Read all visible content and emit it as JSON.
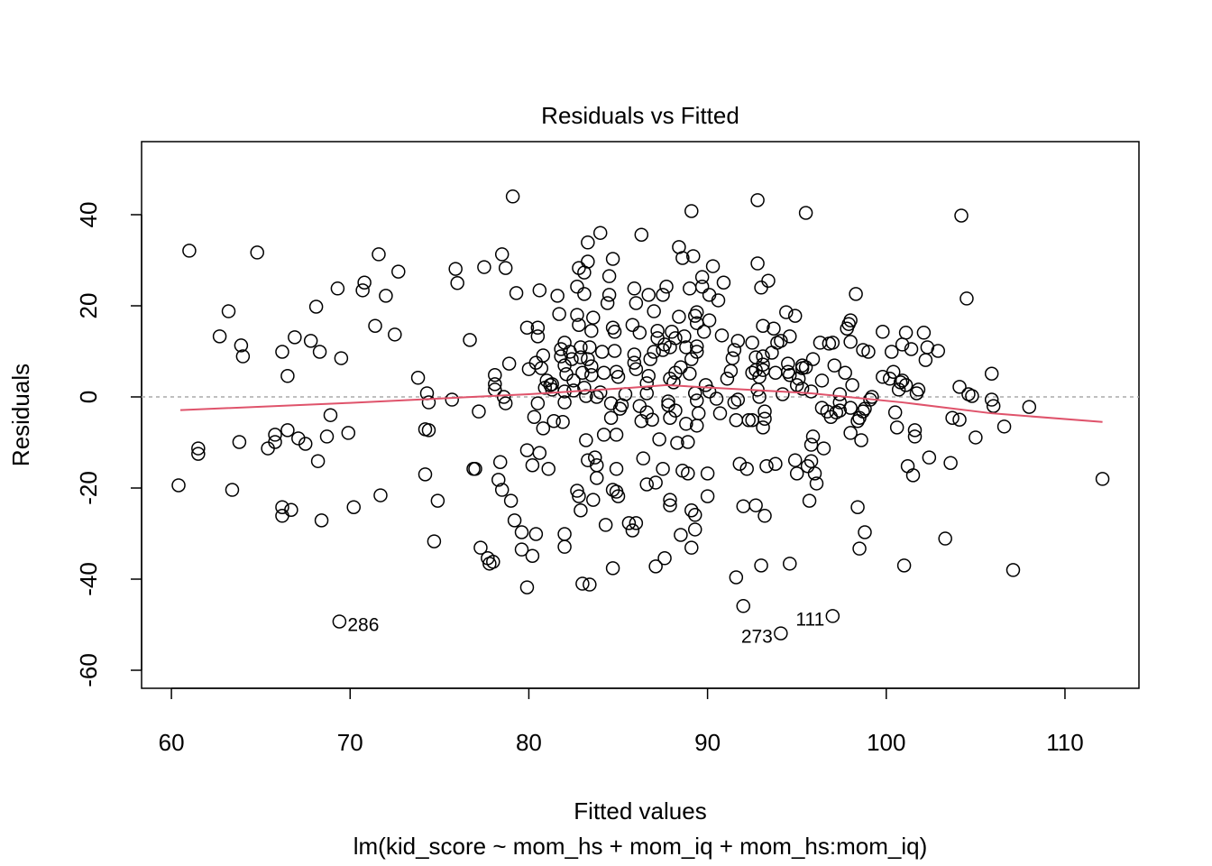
{
  "chart_data": {
    "type": "scatter",
    "title": "Residuals vs Fitted",
    "x_label": "Fitted values",
    "subtitle": "lm(kid_score ~ mom_hs + mom_iq + mom_hs:mom_iq)",
    "y_label": "Residuals",
    "xlim": [
      58.33,
      114.14
    ],
    "ylim": [
      -63.96,
      56.04
    ],
    "xticks": [
      60,
      70,
      80,
      90,
      100,
      110
    ],
    "yticks": [
      -60,
      -40,
      -20,
      0,
      20,
      40
    ],
    "point_color": "#000000",
    "x": [
      60.4,
      61.0,
      61.5,
      61.5,
      62.7,
      63.2,
      63.4,
      63.8,
      63.9,
      64.0,
      64.8,
      65.4,
      65.8,
      65.8,
      66.2,
      66.2,
      66.2,
      66.5,
      66.5,
      66.7,
      66.9,
      67.1,
      67.5,
      67.8,
      68.1,
      68.2,
      68.3,
      68.4,
      68.7,
      68.9,
      69.3,
      69.4,
      69.5,
      69.9,
      70.2,
      70.7,
      70.8,
      71.4,
      71.6,
      71.7,
      72.0,
      72.5,
      72.7,
      73.8,
      74.2,
      74.4,
      74.2,
      74.3,
      74.4,
      74.7,
      74.9,
      75.7,
      75.9,
      76.0,
      76.7,
      76.9,
      77.0,
      77.2,
      77.3,
      77.5,
      77.7,
      77.8,
      78.0,
      78.1,
      78.1,
      78.1,
      78.3,
      78.5,
      78.4,
      78.5,
      78.6,
      78.7,
      78.7,
      78.9,
      79.0,
      79.1,
      79.2,
      79.3,
      79.6,
      79.6,
      79.9,
      79.9,
      79.9,
      80.0,
      80.2,
      80.2,
      80.3,
      80.4,
      80.4,
      80.5,
      80.5,
      80.5,
      80.6,
      80.6,
      80.7,
      80.8,
      80.8,
      80.9,
      81.0,
      81.2,
      81.1,
      81.3,
      81.3,
      81.4,
      81.6,
      81.7,
      81.8,
      81.8,
      81.9,
      82.0,
      82.0,
      82.0,
      82.0,
      82.0,
      82.0,
      82.1,
      82.3,
      82.4,
      82.5,
      82.5,
      82.7,
      82.7,
      82.8,
      82.7,
      82.8,
      82.8,
      82.9,
      82.9,
      82.9,
      83.0,
      83.0,
      83.1,
      83.1,
      83.1,
      83.2,
      83.2,
      83.3,
      83.3,
      83.3,
      83.3,
      83.4,
      83.4,
      83.5,
      83.5,
      83.5,
      83.6,
      83.6,
      83.7,
      83.8,
      83.8,
      83.8,
      84.0,
      84.0,
      84.1,
      84.2,
      84.2,
      84.3,
      84.4,
      84.5,
      84.5,
      84.6,
      84.6,
      84.7,
      84.7,
      84.8,
      84.7,
      84.7,
      84.9,
      84.8,
      84.9,
      85.0,
      84.9,
      84.9,
      85.0,
      85.1,
      85.2,
      85.4,
      85.6,
      85.8,
      86.0,
      85.8,
      85.9,
      85.9,
      85.9,
      86.0,
      86.0,
      86.2,
      86.3,
      86.6,
      86.3,
      86.4,
      86.2,
      86.6,
      86.6,
      86.6,
      86.7,
      86.7,
      86.8,
      86.9,
      87.0,
      87.0,
      87.2,
      87.2,
      87.1,
      87.1,
      87.3,
      87.5,
      87.6,
      87.9,
      87.5,
      87.7,
      87.5,
      87.6,
      87.8,
      87.8,
      87.9,
      87.9,
      87.9,
      88.2,
      87.9,
      88.1,
      88.2,
      88.0,
      88.2,
      88.3,
      88.4,
      88.4,
      88.6,
      88.5,
      88.5,
      88.6,
      88.7,
      88.8,
      88.8,
      88.9,
      88.9,
      89.0,
      89.0,
      89.1,
      89.1,
      89.1,
      89.1,
      89.3,
      89.2,
      89.3,
      89.3,
      89.4,
      89.4,
      89.3,
      89.4,
      89.4,
      89.4,
      89.4,
      89.5,
      89.7,
      89.7,
      89.8,
      89.9,
      90.0,
      90.0,
      90.1,
      90.1,
      90.1,
      90.3,
      90.5,
      90.7,
      90.6,
      90.8,
      90.9,
      91.1,
      91.3,
      91.4,
      91.5,
      91.7,
      91.5,
      91.7,
      91.6,
      91.6,
      91.8,
      92.0,
      92.0,
      92.2,
      92.3,
      92.5,
      92.5,
      92.5,
      92.7,
      92.9,
      92.7,
      92.7,
      92.8,
      92.8,
      92.8,
      92.9,
      93.0,
      93.1,
      93.0,
      93.1,
      93.1,
      93.1,
      93.1,
      93.2,
      93.2,
      93.2,
      93.3,
      93.4,
      93.6,
      93.7,
      93.8,
      93.8,
      93.9,
      94.1,
      94.2,
      94.1,
      94.4,
      94.5,
      94.5,
      94.6,
      94.6,
      94.6,
      94.9,
      94.9,
      95.0,
      95.3,
      95.3,
      95.0,
      95.1,
      95.3,
      95.5,
      95.5,
      95.6,
      95.7,
      95.8,
      95.8,
      95.9,
      95.9,
      95.8,
      96.0,
      96.1,
      96.3,
      96.4,
      96.4,
      96.5,
      96.7,
      96.9,
      96.8,
      97.0,
      97.0,
      97.1,
      97.2,
      97.4,
      97.4,
      97.4,
      97.7,
      97.8,
      97.9,
      98.0,
      98.0,
      98.0,
      98.0,
      98.1,
      98.3,
      98.4,
      98.4,
      98.5,
      98.5,
      98.6,
      98.7,
      98.8,
      98.7,
      99.0,
      98.8,
      99.1,
      99.2,
      99.8,
      99.8,
      100.2,
      100.3,
      100.4,
      100.5,
      100.6,
      100.7,
      100.8,
      100.9,
      100.9,
      101.1,
      101.0,
      101.1,
      101.2,
      101.4,
      101.5,
      101.6,
      101.6,
      101.7,
      101.8,
      102.1,
      102.2,
      102.3,
      102.4,
      102.9,
      103.3,
      103.6,
      103.7,
      104.1,
      104.1,
      104.2,
      104.5,
      104.6,
      104.8,
      105.0,
      105.9,
      105.9,
      106.0,
      106.6,
      107.1,
      108.0,
      112.1
    ],
    "values": [
      -19.4,
      32.1,
      -11.3,
      -12.5,
      13.3,
      18.8,
      -20.4,
      -9.9,
      11.3,
      8.9,
      31.7,
      -11.3,
      -8.3,
      -9.9,
      9.9,
      -24.2,
      -26.1,
      4.6,
      -7.3,
      -24.8,
      13.1,
      -9.1,
      -10.3,
      12.3,
      19.8,
      -14.1,
      9.9,
      -27.1,
      -8.7,
      -4.0,
      23.8,
      -49.3,
      8.5,
      -7.9,
      -24.2,
      23.4,
      25.1,
      15.6,
      31.3,
      -21.6,
      22.2,
      13.7,
      27.5,
      4.2,
      -7.1,
      -7.3,
      -17.0,
      0.8,
      -1.2,
      -31.7,
      -22.8,
      -0.6,
      28.1,
      25.0,
      12.5,
      -15.8,
      -15.8,
      -3.2,
      -33.1,
      28.5,
      -35.4,
      -36.6,
      -36.2,
      4.8,
      2.8,
      1.6,
      -18.2,
      -20.4,
      -14.3,
      31.3,
      0,
      -1.4,
      28.3,
      7.3,
      -22.8,
      44.0,
      -27.1,
      22.8,
      -29.7,
      -33.5,
      -41.8,
      15.2,
      -11.7,
      6.1,
      -34.9,
      -15.0,
      -4.4,
      -30.1,
      7.5,
      15.2,
      13.3,
      -1.4,
      23.4,
      -12.3,
      6.3,
      -6.9,
      9.1,
      2.0,
      3.6,
      2.6,
      -15.8,
      1.6,
      2.8,
      -5.3,
      22.2,
      18.2,
      10.5,
      8.9,
      -5.5,
      6.9,
      11.9,
      -30.1,
      -32.9,
      1.2,
      -1.2,
      5.0,
      9.9,
      8.3,
      1.4,
      3.6,
      18.0,
      24.2,
      28.3,
      -20.6,
      -21.8,
      15.8,
      10.9,
      8.7,
      -24.9,
      -41.0,
      5.3,
      27.3,
      22.6,
      2.0,
      0.2,
      -9.5,
      -13.9,
      33.9,
      29.7,
      8.3,
      10.9,
      -41.2,
      4.8,
      6.7,
      14.5,
      17.4,
      -22.6,
      -13.3,
      -15.0,
      -17.8,
      0,
      1.0,
      36.0,
      9.9,
      5.3,
      -8.3,
      -28.1,
      20.6,
      26.5,
      22.4,
      -1.4,
      -4.6,
      30.3,
      15.2,
      14.3,
      -37.6,
      -20.4,
      -20.8,
      10.1,
      5.5,
      4.4,
      -8.3,
      -15.8,
      -21.8,
      -2.6,
      -1.8,
      0.6,
      -27.7,
      -29.3,
      -27.7,
      15.8,
      9.3,
      7.5,
      23.8,
      20.6,
      6.1,
      -2.0,
      -5.3,
      -3.4,
      35.6,
      -13.5,
      14.1,
      -19.2,
      0.8,
      3.0,
      4.6,
      22.4,
      8.3,
      -5.0,
      9.9,
      18.8,
      12.9,
      14.5,
      -37.2,
      -18.8,
      -9.3,
      10.3,
      11.5,
      10.9,
      22.4,
      24.2,
      -15.8,
      -35.4,
      -1.0,
      -1.8,
      -22.6,
      -23.8,
      -4.6,
      -3.0,
      4.0,
      3.2,
      5.3,
      14.3,
      12.9,
      -10.1,
      17.6,
      32.9,
      30.5,
      -30.3,
      6.5,
      -16.2,
      13.3,
      10.9,
      -5.9,
      -9.9,
      -16.8,
      23.8,
      5.1,
      8.3,
      -33.1,
      40.8,
      -24.9,
      -25.9,
      30.9,
      -29.1,
      0.8,
      -0.8,
      -6.3,
      17.8,
      16.2,
      18.6,
      9.9,
      11.1,
      -3.6,
      26.3,
      24.2,
      14.3,
      2.6,
      -21.8,
      -16.8,
      1.2,
      16.8,
      22.4,
      28.7,
      -0.4,
      -3.6,
      21.2,
      13.5,
      25.1,
      4.0,
      5.7,
      8.5,
      10.3,
      12.3,
      -1.2,
      -0.6,
      -5.1,
      -39.6,
      -14.7,
      -45.9,
      -24.0,
      -15.8,
      -5.1,
      -5.1,
      11.9,
      5.3,
      5.9,
      4.4,
      -23.8,
      8.7,
      29.3,
      43.2,
      1.6,
      0,
      24.0,
      15.6,
      -37.0,
      -6.7,
      7.1,
      5.9,
      8.9,
      -3.2,
      -4.8,
      -26.1,
      -15.2,
      25.5,
      9.7,
      15.0,
      -14.7,
      5.3,
      11.9,
      -51.9,
      0.6,
      12.3,
      18.6,
      7.3,
      5.5,
      4.8,
      -36.6,
      13.3,
      17.8,
      -13.9,
      2.6,
      1.8,
      6.3,
      -16.8,
      4.0,
      6.9,
      6.5,
      40.4,
      -15.2,
      -22.8,
      -10.5,
      1.2,
      -8.7,
      8.3,
      -14.1,
      -16.8,
      -19.0,
      11.9,
      3.6,
      -2.4,
      -11.3,
      -3.2,
      -4.4,
      11.7,
      11.9,
      -48.1,
      6.9,
      -3.4,
      -3.0,
      0.6,
      -1.2,
      5.3,
      15.0,
      16.0,
      16.8,
      -2.4,
      -7.9,
      12.1,
      2.6,
      22.6,
      -24.2,
      -5.3,
      -4.6,
      -33.3,
      -9.5,
      -3.2,
      -2.6,
      10.3,
      9.9,
      -29.7,
      -0.6,
      0,
      14.3,
      4.4,
      4.0,
      9.9,
      5.5,
      -3.4,
      -6.7,
      1.6,
      3.2,
      11.5,
      3.6,
      2.6,
      -37.0,
      14.1,
      -15.2,
      10.5,
      -17.2,
      -7.3,
      -8.7,
      0.8,
      1.6,
      14.1,
      8.1,
      10.9,
      -13.3,
      10.1,
      -31.1,
      -14.5,
      -4.6,
      -5.0,
      2.2,
      39.8,
      21.6,
      0.6,
      0.2,
      -8.9,
      5.1,
      -0.6,
      -2.0,
      -6.5,
      -38.0,
      -2.2,
      -18.0
    ],
    "smooth": {
      "color": "#df536b",
      "x": [
        60.5,
        70,
        80,
        85.7,
        87.7,
        90.3,
        95.8,
        100.9,
        105.9,
        112.1
      ],
      "values": [
        -2.9,
        -1.3,
        0.6,
        2.0,
        2.6,
        2.0,
        0.8,
        -1.2,
        -3.6,
        -5.5
      ]
    },
    "reference_line": {
      "value": 0,
      "color": "#aaaaaa",
      "dashed": true
    },
    "annotations": [
      {
        "text": "286",
        "x": 69.4,
        "y": -49.3,
        "position": "right"
      },
      {
        "text": "273",
        "x": 94.1,
        "y": -51.9,
        "position": "left"
      },
      {
        "text": "111",
        "x": 97.0,
        "y": -48.1,
        "position": "left"
      }
    ]
  }
}
